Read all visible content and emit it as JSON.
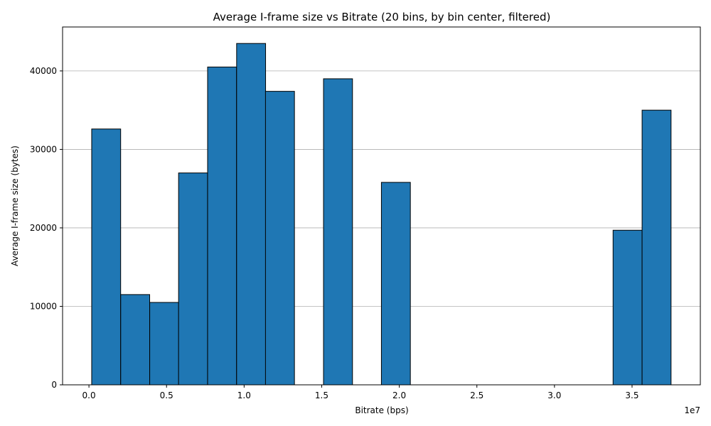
{
  "chart_data": {
    "type": "bar",
    "title": "Average I-frame size vs Bitrate (20 bins, by bin center, filtered)",
    "xlabel": "Bitrate (bps)",
    "ylabel": "Average I-frame size (bytes)",
    "x_offset_label": "1e7",
    "xlim": [
      -0.17,
      3.94
    ],
    "ylim": [
      0,
      45600
    ],
    "x_ticks": [
      0.0,
      0.5,
      1.0,
      1.5,
      2.0,
      2.5,
      3.0,
      3.5
    ],
    "x_tick_labels": [
      "0.0",
      "0.5",
      "1.0",
      "1.5",
      "2.0",
      "2.5",
      "3.0",
      "3.5"
    ],
    "y_ticks": [
      0,
      10000,
      20000,
      30000,
      40000
    ],
    "y_tick_labels": [
      "0",
      "10000",
      "20000",
      "30000",
      "40000"
    ],
    "grid": "y",
    "bar_color": "#1f77b4",
    "edge_color": "#000000",
    "bin_width": 0.1867,
    "bins": [
      {
        "center": 0.111,
        "value": 32600
      },
      {
        "center": 0.298,
        "value": 11500
      },
      {
        "center": 0.485,
        "value": 10500
      },
      {
        "center": 0.671,
        "value": 27000
      },
      {
        "center": 0.858,
        "value": 40500
      },
      {
        "center": 1.045,
        "value": 43500
      },
      {
        "center": 1.231,
        "value": 37400
      },
      {
        "center": 1.605,
        "value": 39000
      },
      {
        "center": 1.978,
        "value": 25800
      },
      {
        "center": 3.471,
        "value": 19700
      },
      {
        "center": 3.658,
        "value": 35000
      }
    ]
  }
}
